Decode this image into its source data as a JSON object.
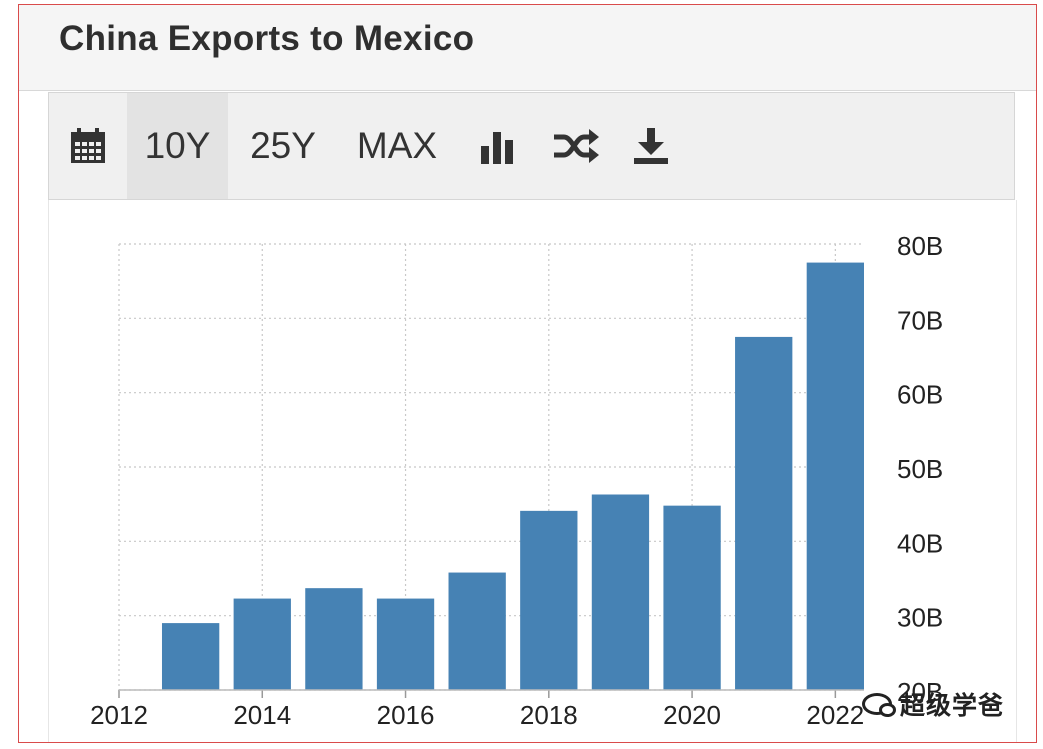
{
  "header": {
    "title": "China Exports to Mexico"
  },
  "toolbar": {
    "items": [
      {
        "label": "",
        "icon": "calendar-icon"
      },
      {
        "label": "10Y",
        "active": true
      },
      {
        "label": "25Y"
      },
      {
        "label": "MAX"
      },
      {
        "label": "",
        "icon": "bar-chart-icon"
      },
      {
        "label": "",
        "icon": "shuffle-icon"
      },
      {
        "label": "",
        "icon": "download-icon"
      }
    ]
  },
  "watermark": {
    "text": "超级学爸",
    "icon": "wechat-icon"
  },
  "chart_data": {
    "type": "bar",
    "title": "",
    "xlabel": "",
    "ylabel": "",
    "x": [
      2013,
      2014,
      2015,
      2016,
      2017,
      2018,
      2019,
      2020,
      2021,
      2022
    ],
    "values": [
      29.0,
      32.3,
      33.7,
      32.3,
      35.8,
      44.1,
      46.3,
      44.8,
      67.5,
      77.5
    ],
    "unit": "B",
    "xlim": [
      2012,
      2022.4
    ],
    "ylim": [
      20,
      80
    ],
    "x_ticks": [
      "2012",
      "2014",
      "2016",
      "2018",
      "2020",
      "2022"
    ],
    "y_ticks": [
      "20B",
      "30B",
      "40B",
      "50B",
      "60B",
      "70B",
      "80B"
    ],
    "y_axis_side": "right",
    "grid": true,
    "bar_color": "#4682b4"
  }
}
